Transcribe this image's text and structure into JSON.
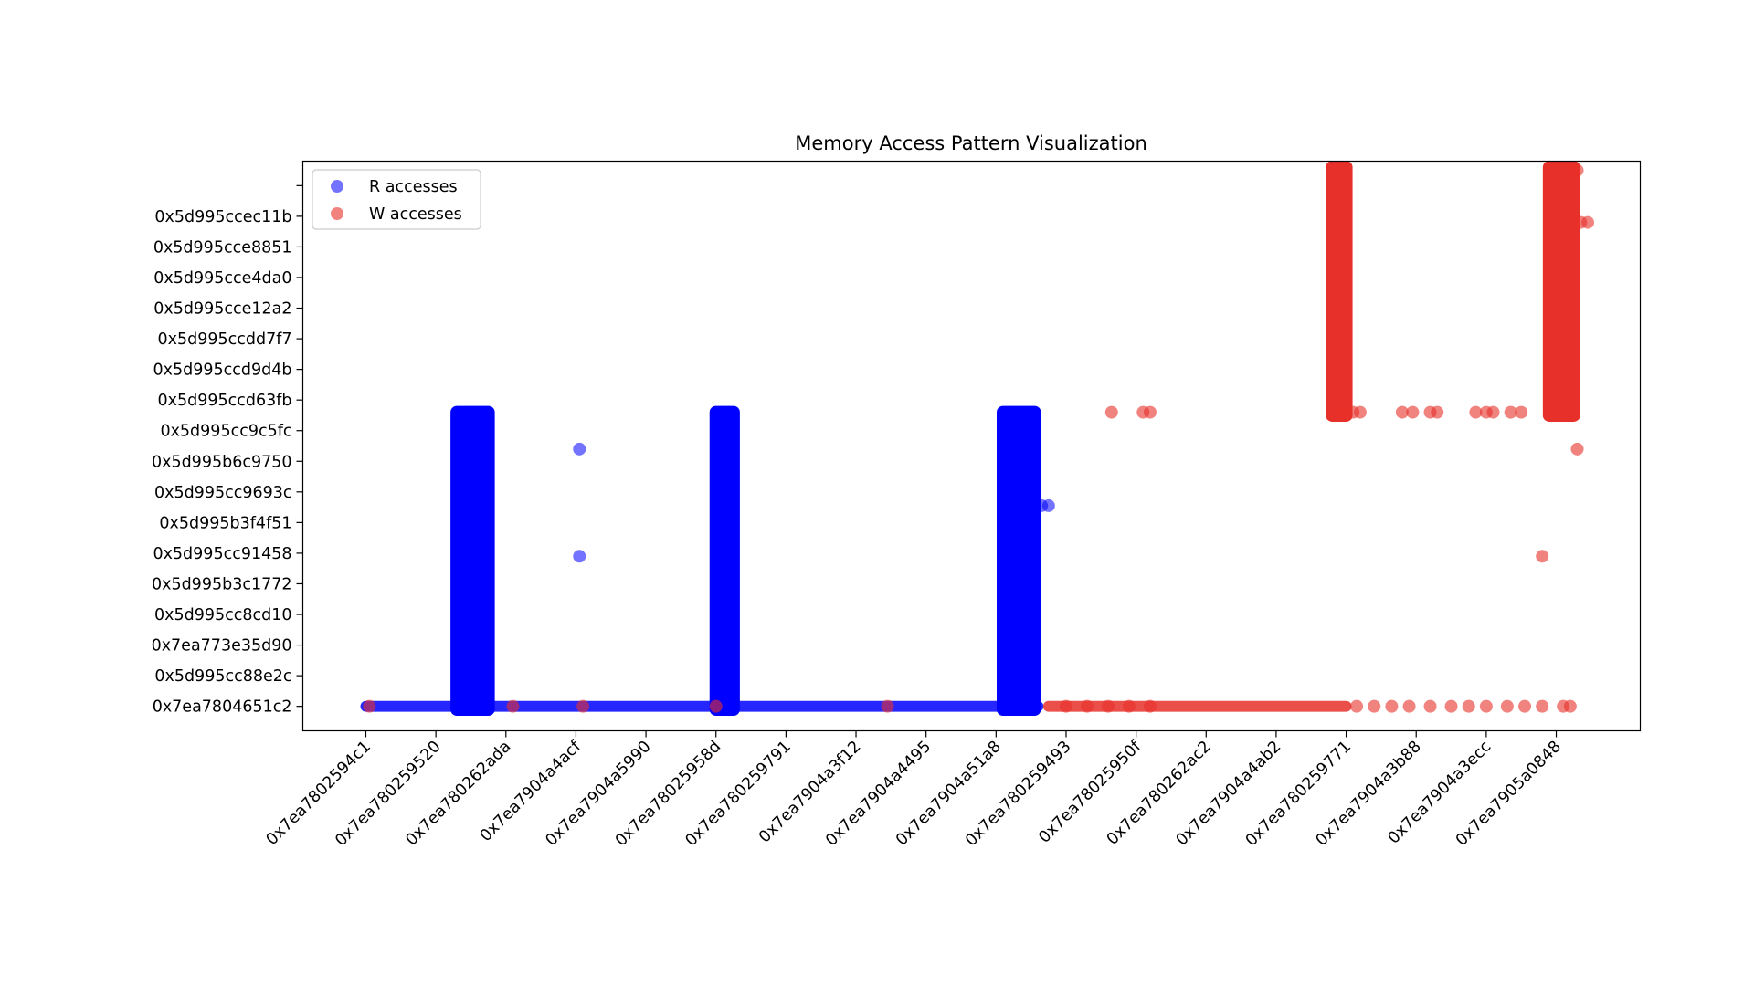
{
  "chart_data": {
    "type": "scatter",
    "title": "Memory Access Pattern Visualization",
    "xlabel": "",
    "ylabel": "",
    "x_ticks": [
      "0x7ea7802594c1",
      "0x7ea780259520",
      "0x7ea780262ada",
      "0x7ea7904a4acf",
      "0x7ea7904a5990",
      "0x7ea78025958d",
      "0x7ea780259791",
      "0x7ea7904a3f12",
      "0x7ea7904a4495",
      "0x7ea7904a51a8",
      "0x7ea780259493",
      "0x7ea78025950f",
      "0x7ea780262ac2",
      "0x7ea7904a4ab2",
      "0x7ea780259771",
      "0x7ea7904a3b88",
      "0x7ea7904a3ecc",
      "0x7ea7905a0848"
    ],
    "y_ticks": [
      "0x7ea7804651c2",
      "0x5d995cc88e2c",
      "0x7ea773e35d90",
      "0x5d995cc8cd10",
      "0x5d995b3c1772",
      "0x5d995cc91458",
      "0x5d995b3f4f51",
      "0x5d995cc9693c",
      "0x5d995b6c9750",
      "0x5d995cc9c5fc",
      "0x5d995ccd63fb",
      "0x5d995ccd9d4b",
      "0x5d995ccdd7f7",
      "0x5d995cce12a2",
      "0x5d995cce4da0",
      "0x5d995cce8851",
      "0x5d995ccec11b"
    ],
    "x_range": [
      -0.9,
      18.2
    ],
    "y_range": [
      -0.8,
      17.8
    ],
    "grid": false,
    "legend_position": "upper-left",
    "series": [
      {
        "name": "R accesses",
        "color": "#0000ff",
        "alpha": 0.55,
        "columns": [
          [
            1.3,
            1.75,
            -0.1,
            9.6
          ],
          [
            5.0,
            5.25,
            -0.1,
            9.6
          ],
          [
            9.1,
            9.55,
            -0.1,
            9.6
          ]
        ],
        "baseline": {
          "y": 0,
          "x_start": 0,
          "x_end": 9.6
        },
        "points": [
          [
            3.05,
            8.4
          ],
          [
            3.05,
            4.9
          ],
          [
            9.65,
            6.55
          ],
          [
            9.75,
            6.55
          ]
        ]
      },
      {
        "name": "W accesses",
        "color": "#e8302a",
        "alpha": 0.6,
        "columns": [
          [
            13.8,
            14.0,
            9.5,
            17.6
          ],
          [
            16.9,
            17.25,
            9.5,
            17.6
          ]
        ],
        "baseline": {
          "y": 0,
          "x_start": 9.75,
          "x_end": 14.0
        },
        "points": [
          [
            0.05,
            0
          ],
          [
            2.1,
            0
          ],
          [
            3.1,
            0
          ],
          [
            5.0,
            0
          ],
          [
            7.45,
            0
          ],
          [
            10.0,
            0
          ],
          [
            10.3,
            0
          ],
          [
            10.6,
            0
          ],
          [
            10.9,
            0
          ],
          [
            11.2,
            0
          ],
          [
            14.15,
            0
          ],
          [
            14.4,
            0
          ],
          [
            14.65,
            0
          ],
          [
            14.9,
            0
          ],
          [
            15.2,
            0
          ],
          [
            15.5,
            0
          ],
          [
            15.75,
            0
          ],
          [
            16.0,
            0
          ],
          [
            16.3,
            0
          ],
          [
            16.55,
            0
          ],
          [
            16.8,
            0
          ],
          [
            17.1,
            0
          ],
          [
            17.2,
            0
          ],
          [
            10.65,
            9.6
          ],
          [
            11.1,
            9.6
          ],
          [
            11.2,
            9.6
          ],
          [
            13.95,
            9.6
          ],
          [
            14.1,
            9.6
          ],
          [
            14.2,
            9.6
          ],
          [
            14.8,
            9.6
          ],
          [
            14.95,
            9.6
          ],
          [
            15.2,
            9.6
          ],
          [
            15.3,
            9.6
          ],
          [
            15.85,
            9.6
          ],
          [
            16.0,
            9.6
          ],
          [
            16.1,
            9.6
          ],
          [
            16.35,
            9.6
          ],
          [
            16.5,
            9.6
          ],
          [
            17.3,
            17.5
          ],
          [
            17.35,
            15.8
          ],
          [
            17.45,
            15.8
          ],
          [
            17.3,
            8.4
          ],
          [
            16.8,
            4.9
          ]
        ]
      }
    ]
  }
}
